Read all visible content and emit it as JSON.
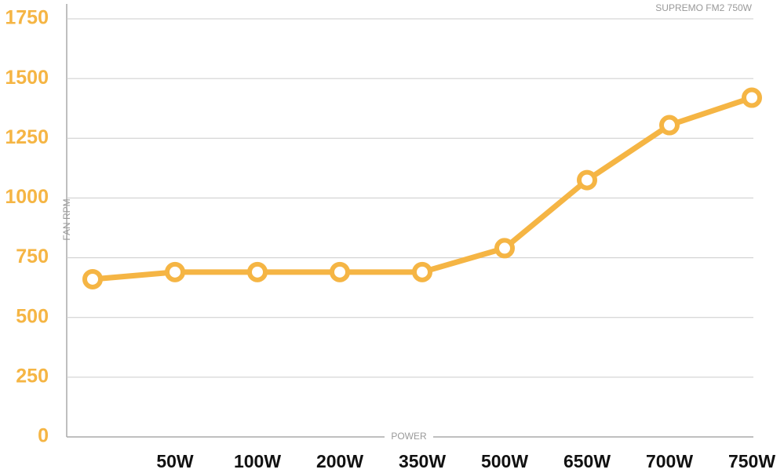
{
  "chart_data": {
    "type": "line",
    "title": "SUPREMO FM2 750W",
    "x_label": "POWER",
    "y_label": "FAN RPM",
    "categories": [
      null,
      "50W",
      "100W",
      "200W",
      "350W",
      "500W",
      "650W",
      "700W",
      "750W"
    ],
    "values": [
      660,
      690,
      690,
      690,
      690,
      790,
      1075,
      1305,
      1420
    ],
    "color": "#f5b544",
    "ylim": [
      0,
      1750
    ],
    "yticks": [
      0,
      250,
      500,
      750,
      1000,
      1250,
      1500,
      1750
    ],
    "grid": true
  }
}
